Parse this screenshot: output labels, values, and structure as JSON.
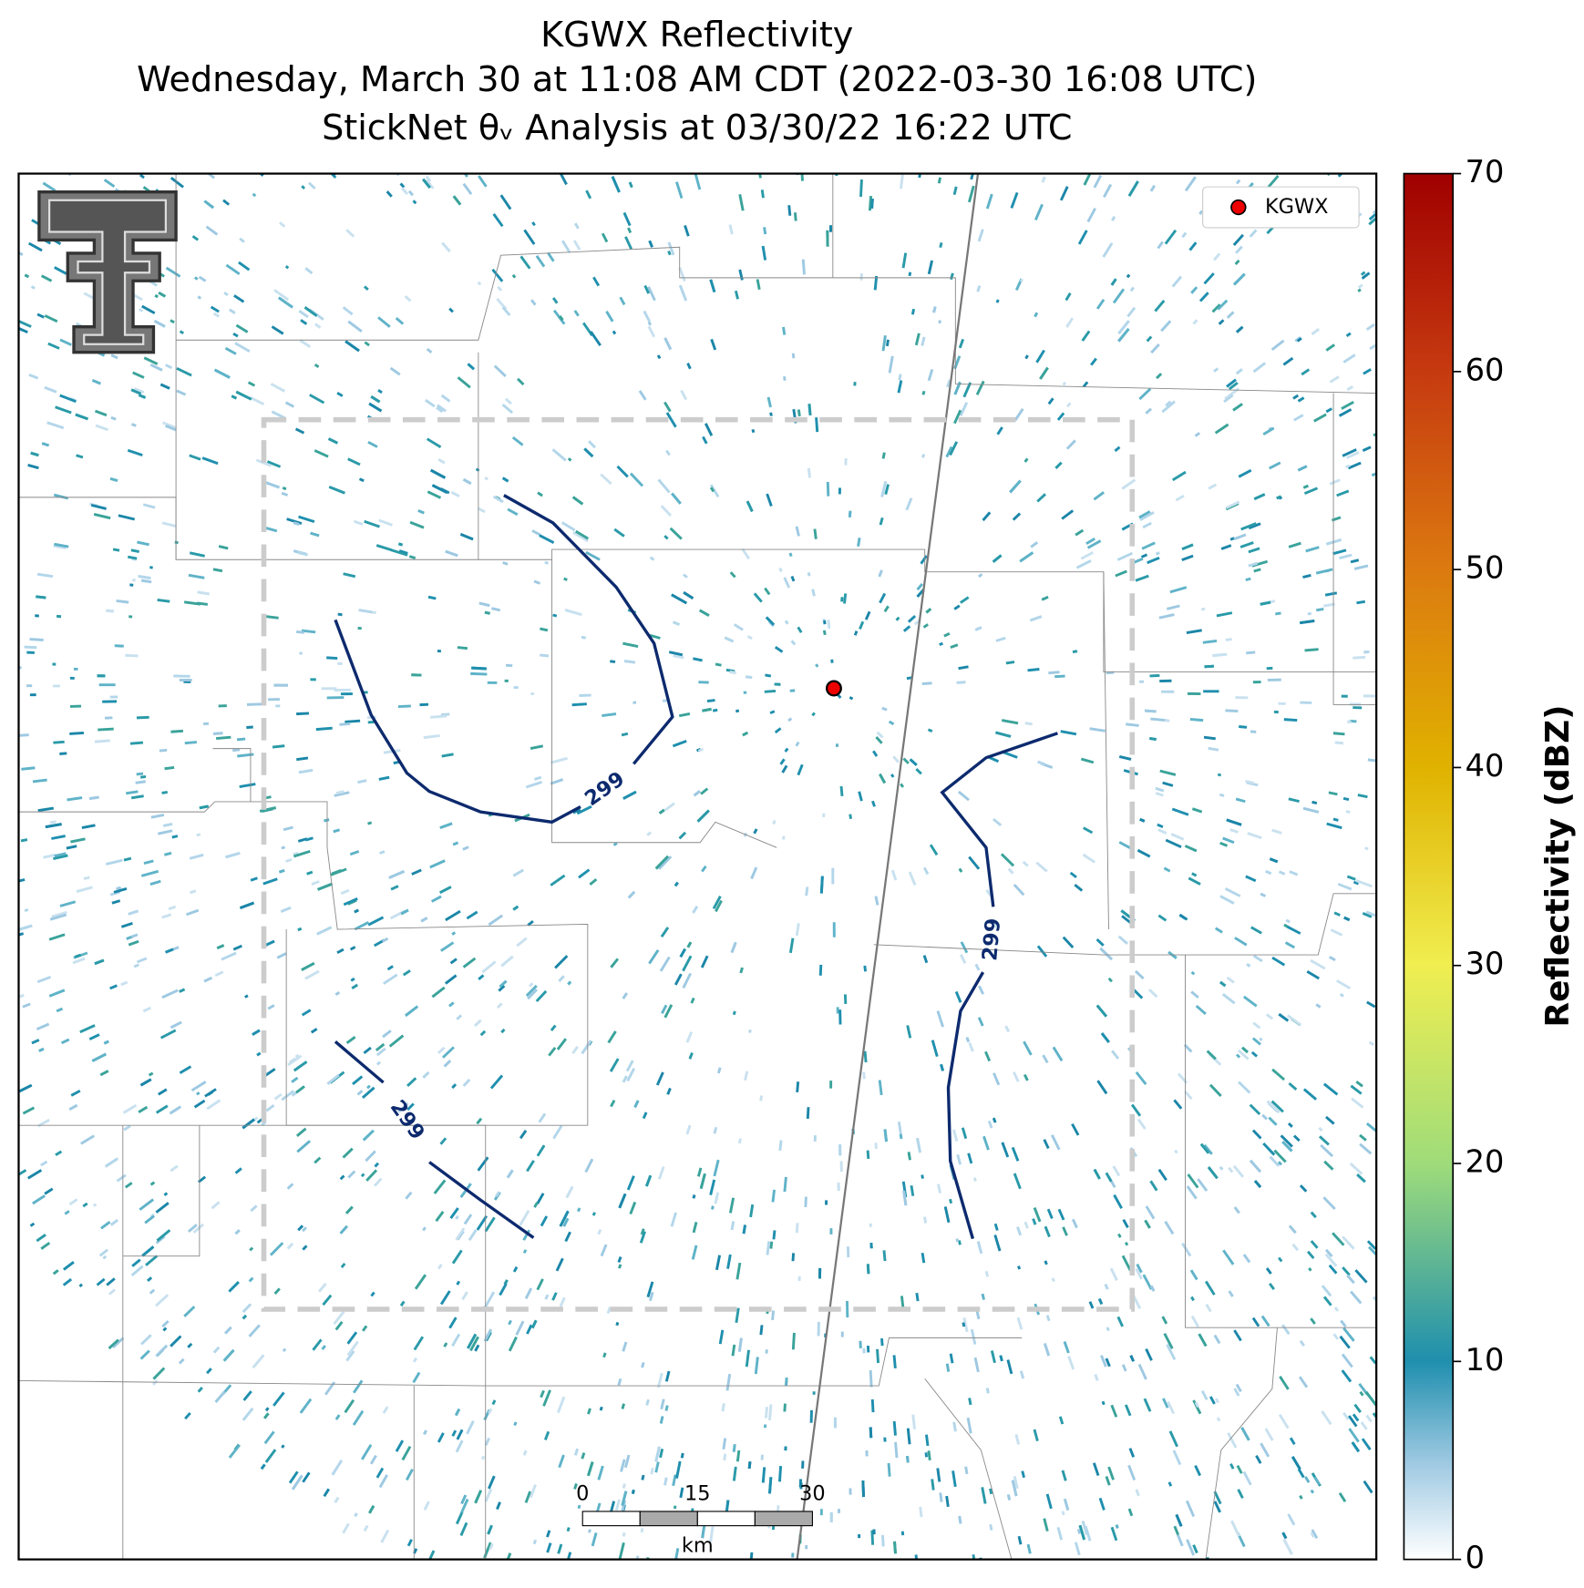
{
  "title": [
    "KGWX Reflectivity",
    "Wednesday, March 30 at 11:08 AM CDT (2022-03-30 16:08 UTC)",
    "StickNet θᵥ Analysis at 03/30/22 16:22 UTC"
  ],
  "legend": {
    "label": "KGWX"
  },
  "colorbar": {
    "label": "Reflectivity (dBZ)",
    "lim": [
      0,
      70
    ],
    "ticks": [
      0,
      10,
      20,
      30,
      40,
      50,
      60,
      70
    ]
  },
  "scale_bar": {
    "ticks": [
      0,
      15,
      30
    ],
    "unit": "km"
  },
  "contours": [
    {
      "label": "299"
    },
    {
      "label": "299"
    },
    {
      "label": "299"
    }
  ]
}
